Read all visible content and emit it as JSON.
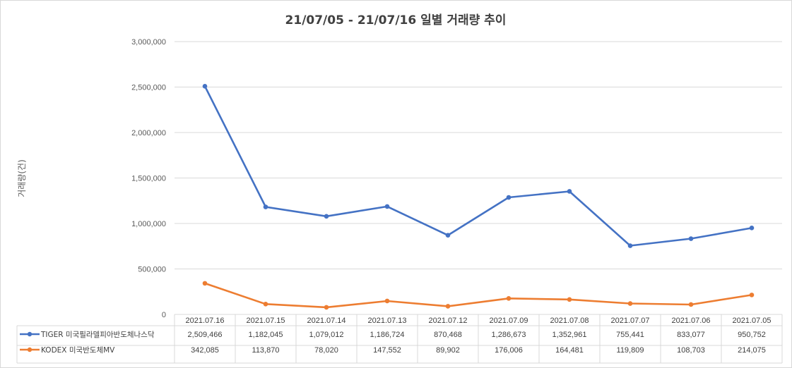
{
  "chart_data": {
    "type": "line",
    "title": "21/07/05 - 21/07/16 일별 거래량 추이",
    "ylabel": "거래량(건)",
    "xlabel": "",
    "ylim": [
      0,
      3000000
    ],
    "yticks": [
      0,
      500000,
      1000000,
      1500000,
      2000000,
      2500000,
      3000000
    ],
    "ytick_labels": [
      "0",
      "500,000",
      "1,000,000",
      "1,500,000",
      "2,000,000",
      "2,500,000",
      "3,000,000"
    ],
    "grid": true,
    "legend_position": "table-bottom",
    "categories": [
      "2021.07.16",
      "2021.07.15",
      "2021.07.14",
      "2021.07.13",
      "2021.07.12",
      "2021.07.09",
      "2021.07.08",
      "2021.07.07",
      "2021.07.06",
      "2021.07.05"
    ],
    "series": [
      {
        "name": "TIGER 미국필라델피아반도체나스닥",
        "color": "#4472C4",
        "values": [
          2509466,
          1182045,
          1079012,
          1186724,
          870468,
          1286673,
          1352961,
          755441,
          833077,
          950752
        ],
        "labels": [
          "2,509,466",
          "1,182,045",
          "1,079,012",
          "1,186,724",
          "870,468",
          "1,286,673",
          "1,352,961",
          "755,441",
          "833,077",
          "950,752"
        ]
      },
      {
        "name": "KODEX 미국반도체MV",
        "color": "#ED7D31",
        "values": [
          342085,
          113870,
          78020,
          147552,
          89902,
          176006,
          164481,
          119809,
          108703,
          214075
        ],
        "labels": [
          "342,085",
          "113,870",
          "78,020",
          "147,552",
          "89,902",
          "176,006",
          "164,481",
          "119,809",
          "108,703",
          "214,075"
        ]
      }
    ]
  }
}
